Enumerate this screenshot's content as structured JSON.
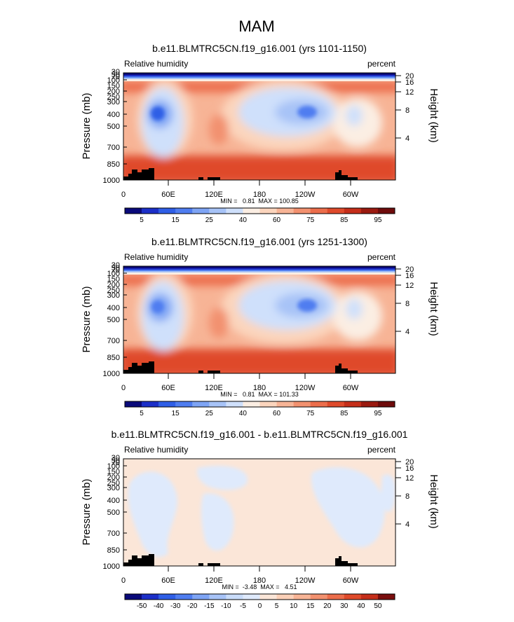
{
  "page_title": "MAM",
  "colors": {
    "rh_palette": [
      "#0a0a7a",
      "#1c2fc8",
      "#2f5ee6",
      "#4f7df0",
      "#7ea4f4",
      "#a7c3f7",
      "#cfe0fb",
      "#fbeee3",
      "#fbd5bd",
      "#f7b496",
      "#f2916f",
      "#ec6d4b",
      "#df4a2b",
      "#c52e1a",
      "#9a1a10",
      "#6e0b0b"
    ],
    "diff_palette": [
      "#0a0a7a",
      "#1c2fc8",
      "#2f5ee6",
      "#4f7df0",
      "#7ea4f4",
      "#a7c3f7",
      "#c9dcfa",
      "#dfeafc",
      "#fbe6d8",
      "#fbd0b8",
      "#f7b496",
      "#f2916f",
      "#ec6d4b",
      "#df4a2b",
      "#c52e1a",
      "#7a0e0e"
    ],
    "terrain": "#000000"
  },
  "chart_data": [
    {
      "type": "heatmap",
      "title": "b.e11.BLMTRC5CN.f19_g16.001 (yrs 1101-1150)",
      "left_label": "Relative humidity",
      "right_label": "percent",
      "ylabel": "Pressure (mb)",
      "ylabel_right": "Height (km)",
      "x_ticks": [
        "0",
        "60E",
        "120E",
        "180",
        "120W",
        "60W"
      ],
      "y_ticks": [
        "1000",
        "850",
        "700",
        "500",
        "400",
        "300",
        "250",
        "200",
        "150",
        "100",
        "70",
        "50",
        "30"
      ],
      "y2_ticks": [
        "4",
        "8",
        "12",
        "16",
        "20"
      ],
      "stats": "MIN =   0.81  MAX = 100.85",
      "colorbar_labels": [
        "5",
        "15",
        "25",
        "40",
        "60",
        "75",
        "85",
        "95"
      ],
      "min": 0.81,
      "max": 100.85
    },
    {
      "type": "heatmap",
      "title": "b.e11.BLMTRC5CN.f19_g16.001 (yrs 1251-1300)",
      "left_label": "Relative humidity",
      "right_label": "percent",
      "ylabel": "Pressure (mb)",
      "ylabel_right": "Height (km)",
      "x_ticks": [
        "0",
        "60E",
        "120E",
        "180",
        "120W",
        "60W"
      ],
      "y_ticks": [
        "1000",
        "850",
        "700",
        "500",
        "400",
        "300",
        "250",
        "200",
        "150",
        "100",
        "70",
        "50",
        "30"
      ],
      "y2_ticks": [
        "4",
        "8",
        "12",
        "16",
        "20"
      ],
      "stats": "MIN =   0.81  MAX = 101.33",
      "colorbar_labels": [
        "5",
        "15",
        "25",
        "40",
        "60",
        "75",
        "85",
        "95"
      ],
      "min": 0.81,
      "max": 101.33
    },
    {
      "type": "heatmap",
      "title": "b.e11.BLMTRC5CN.f19_g16.001 - b.e11.BLMTRC5CN.f19_g16.001",
      "left_label": "Relative humidity",
      "right_label": "percent",
      "ylabel": "Pressure (mb)",
      "ylabel_right": "Height (km)",
      "x_ticks": [
        "0",
        "60E",
        "120E",
        "180",
        "120W",
        "60W"
      ],
      "y_ticks": [
        "1000",
        "850",
        "700",
        "500",
        "400",
        "300",
        "250",
        "200",
        "150",
        "100",
        "70",
        "50",
        "30"
      ],
      "y2_ticks": [
        "4",
        "8",
        "12",
        "16",
        "20"
      ],
      "stats": "MIN =  -3.48  MAX =   4.51",
      "colorbar_labels": [
        "-50",
        "-40",
        "-30",
        "-20",
        "-15",
        "-10",
        "-5",
        "0",
        "5",
        "10",
        "15",
        "20",
        "30",
        "40",
        "50"
      ],
      "min": -3.48,
      "max": 4.51
    }
  ]
}
